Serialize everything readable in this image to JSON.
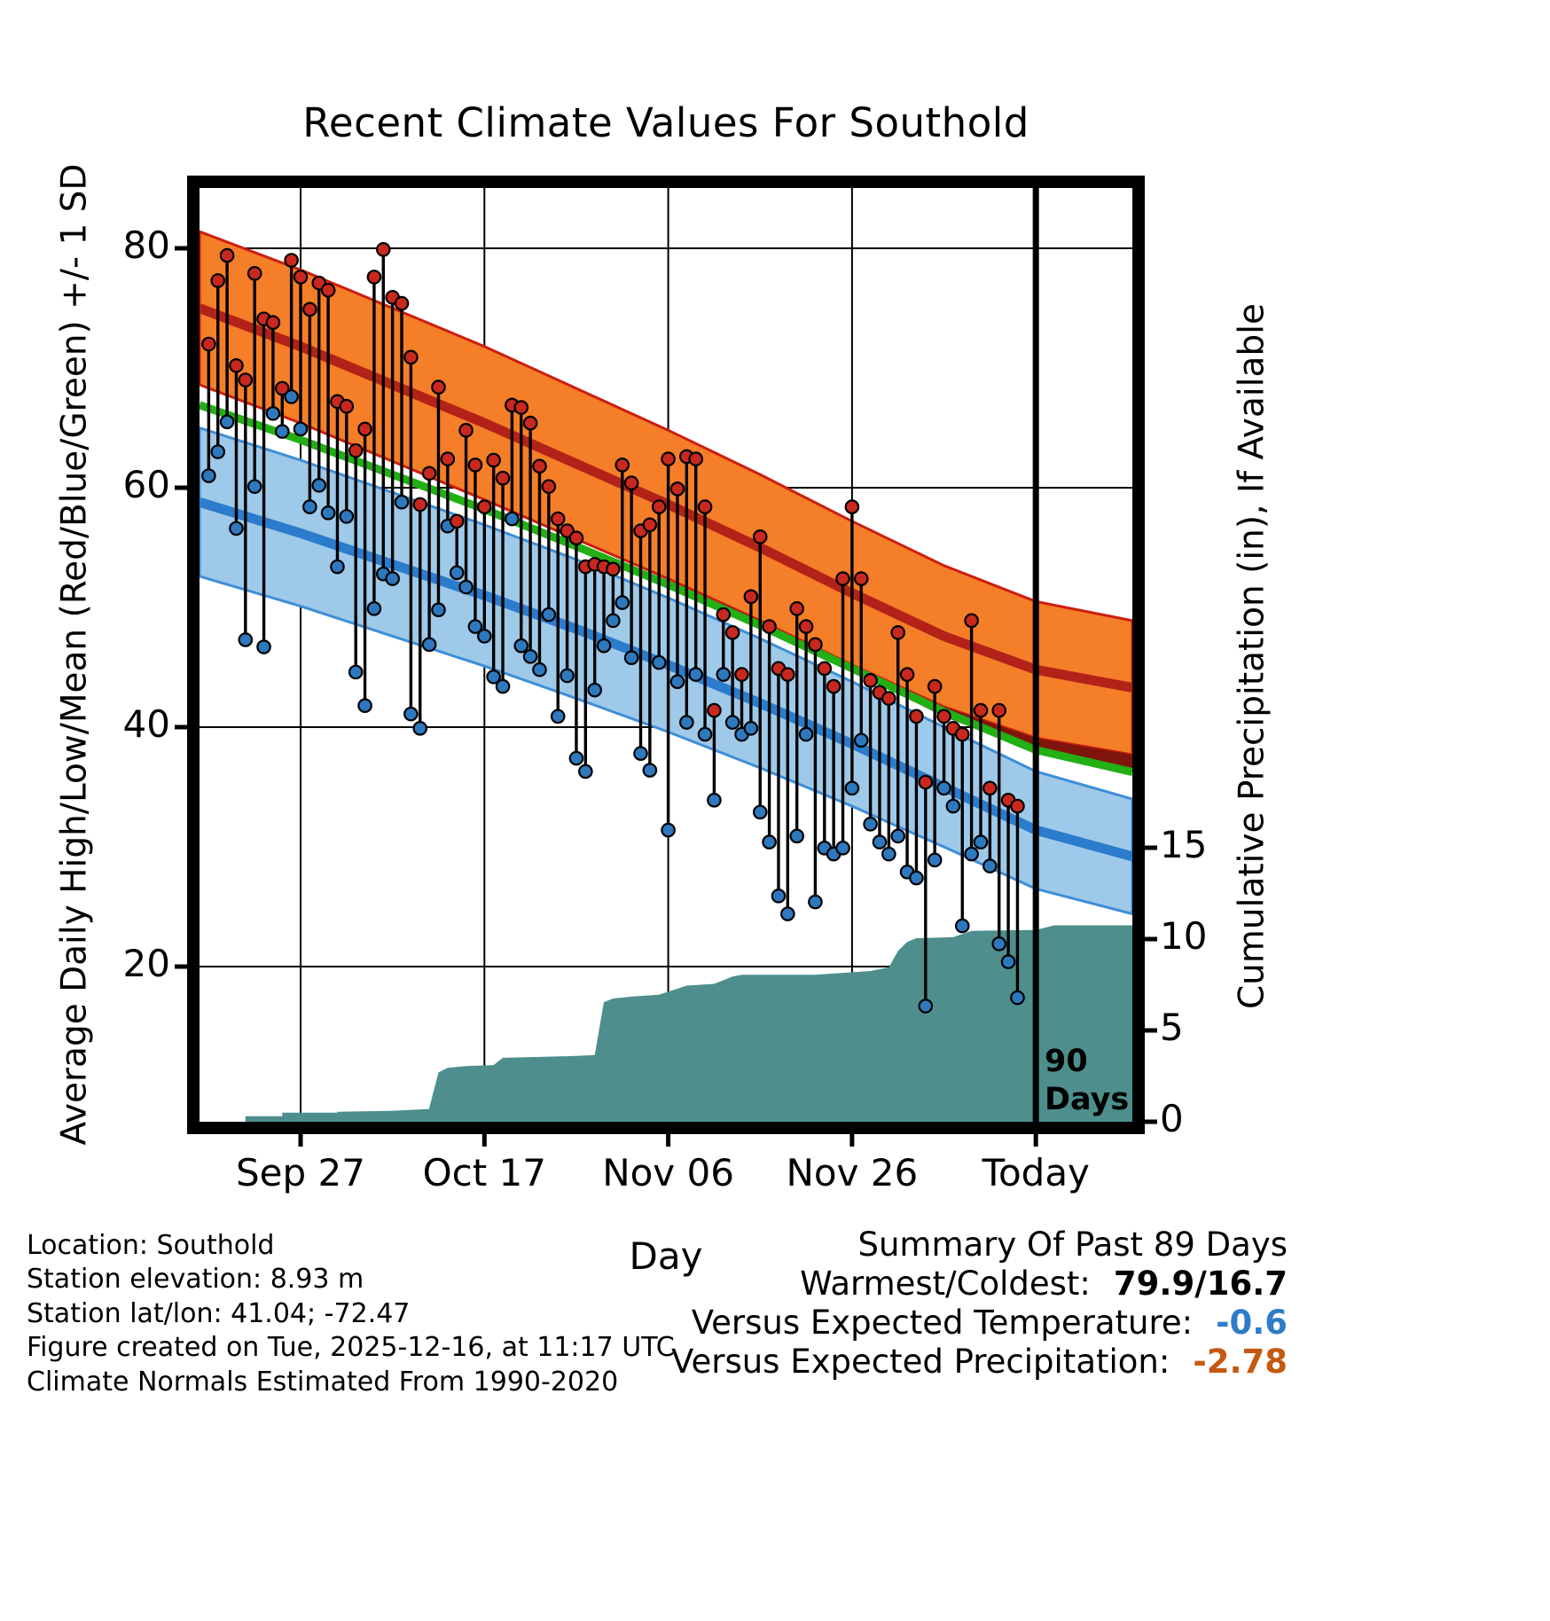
{
  "title": "Recent Climate Values For Southold",
  "footer": {
    "lines": [
      "Location: Southold",
      "Station elevation: 8.93 m",
      "Station lat/lon: 41.04; -72.47",
      "Figure created on Tue, 2025-12-16, at 11:17 UTC",
      "Climate Normals Estimated From 1990-2020"
    ]
  },
  "summary": {
    "title": "Summary Of Past 89 Days",
    "rows": [
      {
        "label": "Warmest/Coldest:",
        "value": "79.9/16.7",
        "style": "bold-black"
      },
      {
        "label": "Versus Expected Temperature:",
        "value": "-0.6",
        "style": "bold-blue"
      },
      {
        "label": "Versus Expected Precipitation:",
        "value": "-2.78",
        "style": "bold-orange"
      }
    ]
  },
  "chart_data": {
    "type": "line",
    "title": "Recent Climate Values For Southold",
    "xlabel": "Day",
    "ylabel_left": "Average Daily High/Low/Mean (Red/Blue/Green) +/- 1 SD",
    "ylabel_right": "Cumulative Precipitation (in), If Available",
    "x_axis": {
      "unit": "days since Sep 17",
      "range": [
        -1,
        100.5
      ],
      "ticks": [
        {
          "day": 10,
          "label": "Sep 27"
        },
        {
          "day": 30,
          "label": "Oct 17"
        },
        {
          "day": 50,
          "label": "Nov 06"
        },
        {
          "day": 70,
          "label": "Nov 26"
        },
        {
          "day": 90,
          "label": "Today"
        }
      ]
    },
    "y_left": {
      "range": [
        7,
        85
      ],
      "ticks": [
        20,
        40,
        60,
        80
      ],
      "unit": "deg F"
    },
    "y_right": {
      "range": [
        0,
        15.9
      ],
      "ticks": [
        0,
        5,
        10,
        15
      ],
      "unit": "in"
    },
    "grid": true,
    "ninety_day_line": {
      "day": 90,
      "label": [
        "90",
        "Days"
      ]
    },
    "normals": {
      "days": [
        -1,
        10,
        20,
        30,
        40,
        50,
        60,
        70,
        80,
        90,
        100.5
      ],
      "high_mean": [
        75,
        71.8,
        68.6,
        65.4,
        62,
        58.6,
        55,
        51.2,
        47.6,
        44.8,
        43.3
      ],
      "high_sd": [
        6.4,
        6.4,
        6.4,
        6.4,
        6.3,
        6.2,
        6.1,
        6.0,
        5.9,
        5.7,
        5.6
      ],
      "low_mean": [
        58.8,
        56.2,
        53.6,
        51,
        48.2,
        45.2,
        42,
        38.6,
        35,
        31.4,
        29.2
      ],
      "low_sd": [
        6.2,
        6.1,
        6.0,
        5.9,
        5.8,
        5.6,
        5.4,
        5.2,
        5.0,
        4.9,
        4.8
      ]
    },
    "daily": {
      "start_day": 0,
      "highs": [
        72,
        77.3,
        79.4,
        70.2,
        69,
        77.9,
        74.1,
        73.8,
        68.3,
        79,
        77.6,
        74.9,
        77.1,
        76.5,
        67.2,
        66.8,
        63.1,
        64.9,
        77.6,
        79.9,
        75.9,
        75.4,
        70.9,
        58.6,
        61.2,
        68.4,
        62.4,
        57.2,
        64.8,
        61.9,
        58.4,
        62.3,
        60.8,
        66.9,
        66.7,
        65.4,
        61.8,
        60.1,
        57.4,
        56.4,
        55.8,
        53.4,
        53.6,
        53.4,
        53.2,
        61.9,
        60.4,
        56.4,
        56.9,
        58.4,
        62.4,
        59.9,
        62.6,
        62.4,
        58.4,
        41.4,
        49.4,
        47.9,
        44.4,
        50.9,
        55.9,
        48.4,
        44.9,
        44.4,
        49.9,
        48.4,
        46.9,
        44.9,
        43.4,
        52.4,
        58.4,
        52.4,
        43.9,
        42.9,
        42.4,
        47.9,
        44.4,
        40.9,
        35.4,
        43.4,
        40.9,
        39.9,
        39.4,
        48.9,
        41.4,
        34.9,
        41.4,
        33.9,
        33.4
      ],
      "lows": [
        61,
        63,
        65.5,
        56.6,
        47.3,
        60.1,
        46.7,
        66.2,
        64.7,
        67.6,
        64.9,
        58.4,
        60.2,
        57.9,
        53.4,
        57.6,
        44.6,
        41.8,
        49.9,
        52.8,
        52.4,
        58.8,
        41.1,
        39.9,
        46.9,
        49.8,
        56.8,
        52.9,
        51.7,
        48.4,
        47.6,
        44.2,
        43.4,
        57.4,
        46.8,
        45.9,
        44.8,
        49.4,
        40.9,
        44.3,
        37.4,
        36.3,
        43.1,
        46.8,
        48.9,
        50.4,
        45.8,
        37.8,
        36.4,
        45.4,
        31.4,
        43.8,
        40.4,
        44.4,
        39.4,
        33.9,
        44.4,
        40.4,
        39.4,
        39.9,
        32.9,
        30.4,
        25.9,
        24.4,
        30.9,
        39.4,
        25.4,
        29.9,
        29.4,
        29.9,
        34.9,
        38.9,
        31.9,
        30.4,
        29.4,
        30.9,
        27.9,
        27.4,
        16.7,
        28.9,
        34.9,
        33.4,
        23.4,
        29.4,
        30.4,
        28.4,
        21.9,
        20.4,
        17.4
      ]
    },
    "precip_cumulative": [
      [
        -1,
        0
      ],
      [
        4,
        0
      ],
      [
        4,
        0.3
      ],
      [
        8,
        0.3
      ],
      [
        8,
        0.5
      ],
      [
        14,
        0.5
      ],
      [
        14,
        0.55
      ],
      [
        20,
        0.6
      ],
      [
        24,
        0.7
      ],
      [
        24,
        0.75
      ],
      [
        25,
        2.7
      ],
      [
        26,
        2.95
      ],
      [
        28,
        3.05
      ],
      [
        31,
        3.1
      ],
      [
        32,
        3.5
      ],
      [
        36,
        3.55
      ],
      [
        40,
        3.6
      ],
      [
        42,
        3.65
      ],
      [
        43,
        6.55
      ],
      [
        44,
        6.75
      ],
      [
        46,
        6.85
      ],
      [
        49,
        6.95
      ],
      [
        52,
        7.45
      ],
      [
        55,
        7.55
      ],
      [
        57,
        7.95
      ],
      [
        58,
        8.05
      ],
      [
        66,
        8.05
      ],
      [
        69,
        8.15
      ],
      [
        72,
        8.25
      ],
      [
        74,
        8.45
      ],
      [
        75,
        9.35
      ],
      [
        76,
        9.85
      ],
      [
        77,
        10.05
      ],
      [
        81,
        10.1
      ],
      [
        83,
        10.45
      ],
      [
        90,
        10.5
      ],
      [
        92,
        10.75
      ],
      [
        100.5,
        10.75
      ]
    ],
    "colors": {
      "orange_band": "#F57E28",
      "red_edge": "#CC1E10",
      "high_mean_line": "#B22218",
      "overlap_band": "#7E150C",
      "green_mean_line": "#22B014",
      "blue_band": "#9FC9E8",
      "blue_edge": "#3E8ED8",
      "low_mean_line": "#2B7CCC",
      "precip_area": "#4E8E8D",
      "stem": "#000000",
      "high_dot": "#C8281E",
      "low_dot": "#2E78BE",
      "ninety_line": "#000000",
      "grid": "#000000",
      "frame": "#000000",
      "summary_temp_value": "#2E7CC8",
      "summary_precip_value": "#C45A11"
    }
  }
}
